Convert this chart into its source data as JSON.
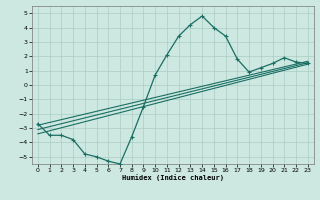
{
  "xlabel": "Humidex (Indice chaleur)",
  "xlim": [
    -0.5,
    23.5
  ],
  "ylim": [
    -5.5,
    5.5
  ],
  "yticks": [
    -5,
    -4,
    -3,
    -2,
    -1,
    0,
    1,
    2,
    3,
    4,
    5
  ],
  "xticks": [
    0,
    1,
    2,
    3,
    4,
    5,
    6,
    7,
    8,
    9,
    10,
    11,
    12,
    13,
    14,
    15,
    16,
    17,
    18,
    19,
    20,
    21,
    22,
    23
  ],
  "bg_color": "#cce8e0",
  "grid_color": "#aaccc4",
  "line_color": "#1a6e64",
  "data_x": [
    0,
    1,
    2,
    3,
    4,
    5,
    6,
    7,
    8,
    9,
    10,
    11,
    12,
    13,
    14,
    15,
    16,
    17,
    18,
    19,
    20,
    21,
    22,
    23
  ],
  "data_y": [
    -2.7,
    -3.5,
    -3.5,
    -3.8,
    -4.8,
    -5.0,
    -5.3,
    -5.5,
    -3.6,
    -1.5,
    0.7,
    2.1,
    3.4,
    4.2,
    4.8,
    4.0,
    3.4,
    1.8,
    0.9,
    1.2,
    1.5,
    1.9,
    1.6,
    1.5
  ],
  "trend1_x": [
    0,
    23
  ],
  "trend1_y": [
    -3.1,
    1.55
  ],
  "trend2_x": [
    0,
    23
  ],
  "trend2_y": [
    -2.8,
    1.65
  ],
  "trend3_x": [
    0,
    23
  ],
  "trend3_y": [
    -3.4,
    1.45
  ]
}
